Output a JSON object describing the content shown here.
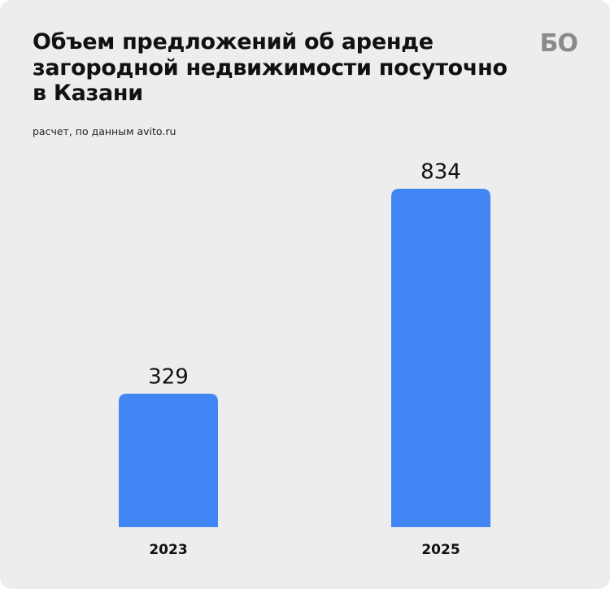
{
  "chart_data": {
    "type": "bar",
    "title": "Объем предложений об аренде\nзагородной недвижимости посуточно\nв Казани",
    "subtitle": "расчет, по данным avito.ru",
    "logo": "БО",
    "categories": [
      "2023",
      "2025"
    ],
    "values": [
      329,
      834
    ],
    "color": "#4286f5"
  }
}
